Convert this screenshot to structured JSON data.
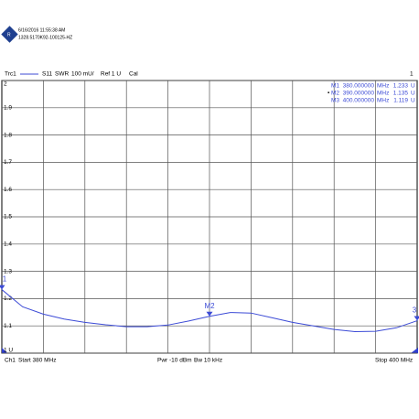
{
  "chart_data": {
    "type": "line",
    "header": {
      "timestamp": "6/16/2016 11:55:38 AM",
      "serial": "1328.5170K92-100125-HZ"
    },
    "trace_bar": {
      "trace": "Trc1",
      "parameter": "S11",
      "format": "SWR",
      "scale": "100 mU/",
      "reference": "Ref 1 U",
      "cal": "Cal",
      "window": "1"
    },
    "footer": {
      "channel": "Ch1",
      "start": "Start 380 MHz",
      "power": "Pwr -10 dBm",
      "bandwidth": "Bw 10 kHz",
      "stop": "Stop 400 MHz"
    },
    "xlim": [
      380,
      400
    ],
    "ylim": [
      1,
      2
    ],
    "yticks": [
      {
        "value": 1,
        "label": "1 U"
      },
      1.1,
      1.2,
      1.3,
      1.4,
      1.5,
      1.6,
      1.7,
      1.8,
      1.9,
      2
    ],
    "grid": true,
    "series": [
      {
        "name": "Trc1",
        "color": "#3c4bd6",
        "x": [
          380,
          381,
          382,
          383,
          384,
          385,
          386,
          387,
          388,
          389,
          390,
          391,
          392,
          393,
          394,
          395,
          396,
          397,
          398,
          399,
          400
        ],
        "values": [
          1.233,
          1.17,
          1.143,
          1.125,
          1.113,
          1.104,
          1.097,
          1.097,
          1.103,
          1.118,
          1.135,
          1.149,
          1.147,
          1.13,
          1.113,
          1.1,
          1.087,
          1.079,
          1.08,
          1.093,
          1.119
        ]
      }
    ],
    "markers": [
      {
        "name": "M1",
        "plot_label": "1",
        "x": 380,
        "x_label": "380.000000",
        "x_unit": "MHz",
        "y": 1.233,
        "y_unit": "U"
      },
      {
        "name": "M2",
        "plot_label": "M2",
        "x": 390,
        "x_label": "390.000000",
        "x_unit": "MHz",
        "y": 1.135,
        "y_unit": "U"
      },
      {
        "name": "M3",
        "plot_label": "3",
        "x": 400,
        "x_label": "400.000000",
        "x_unit": "MHz",
        "y": 1.119,
        "y_unit": "U"
      }
    ]
  }
}
